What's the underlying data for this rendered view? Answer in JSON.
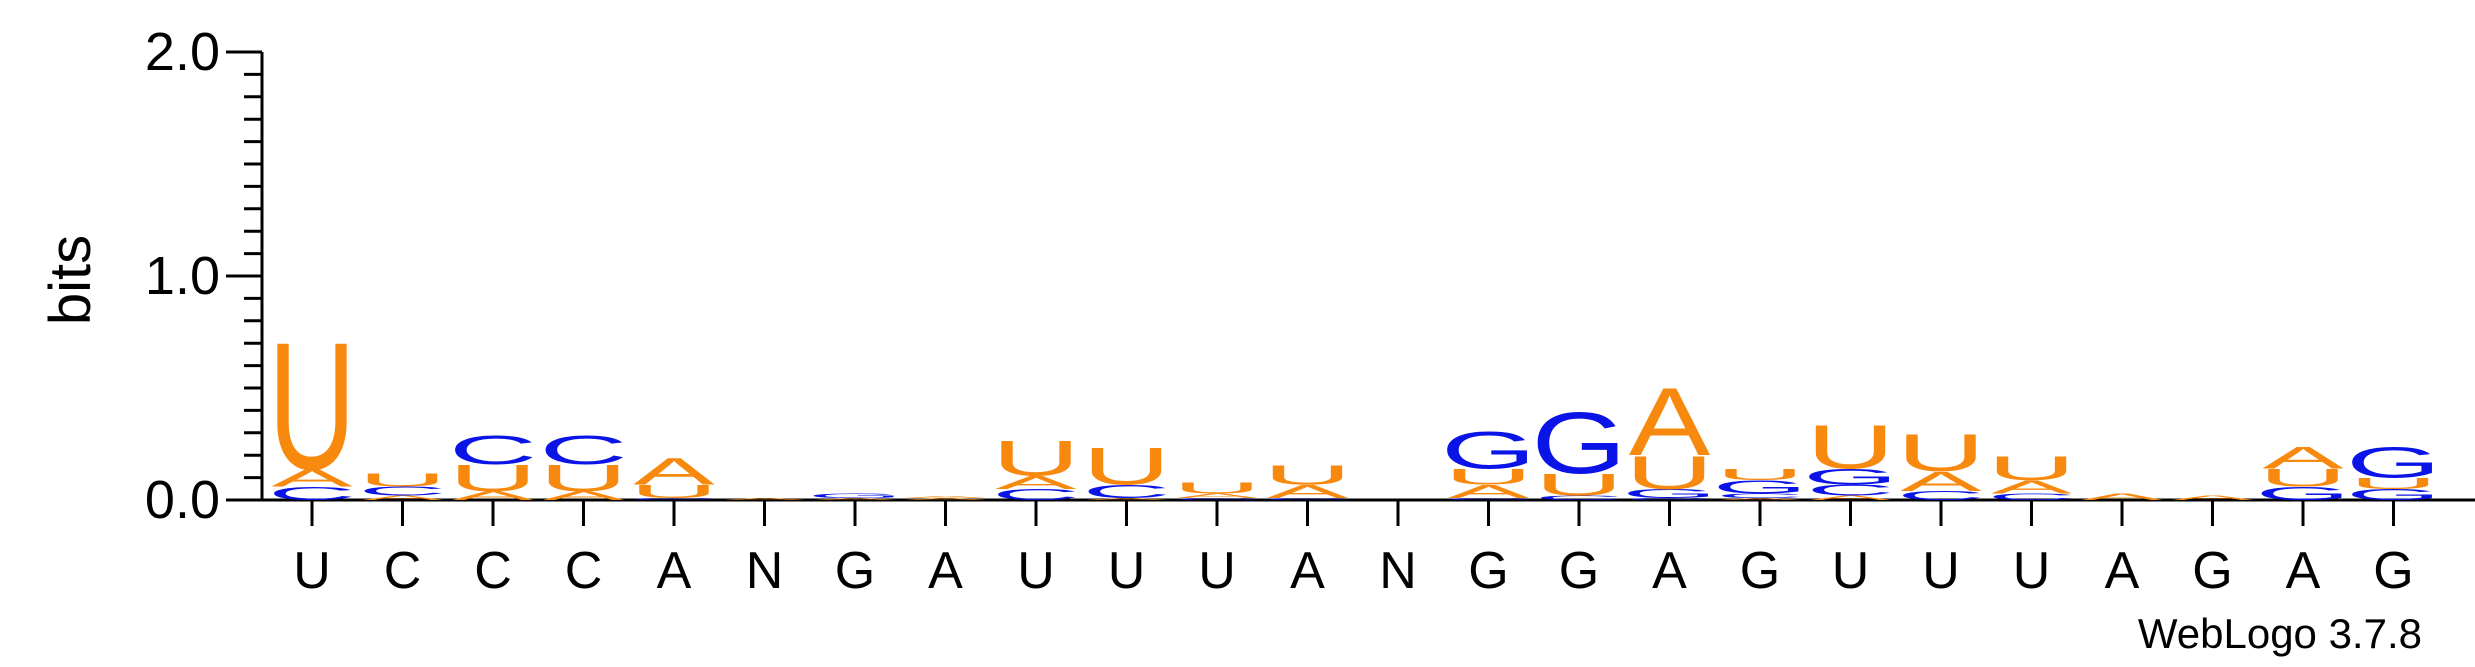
{
  "chart_data": {
    "type": "sequence-logo",
    "ylabel": "bits",
    "ylim": [
      0,
      2.0
    ],
    "yticks": [
      "0.0",
      "1.0",
      "2.0"
    ],
    "colors": {
      "A": "#f7890f",
      "U": "#f7890f",
      "C": "#0a14e6",
      "G": "#0a14e6",
      "N": "#0a14e6"
    },
    "positions": [
      "U",
      "C",
      "C",
      "C",
      "A",
      "N",
      "G",
      "A",
      "U",
      "U",
      "U",
      "A",
      "N",
      "G",
      "G",
      "A",
      "G",
      "U",
      "U",
      "U",
      "A",
      "G",
      "A",
      "G"
    ],
    "stacks": [
      [
        {
          "l": "C",
          "h": 0.06
        },
        {
          "l": "A",
          "h": 0.08
        },
        {
          "l": "U",
          "h": 0.58
        }
      ],
      [
        {
          "l": "A",
          "h": 0.02
        },
        {
          "l": "C",
          "h": 0.04
        },
        {
          "l": "U",
          "h": 0.06
        }
      ],
      [
        {
          "l": "A",
          "h": 0.04
        },
        {
          "l": "U",
          "h": 0.12
        },
        {
          "l": "C",
          "h": 0.13
        }
      ],
      [
        {
          "l": "A",
          "h": 0.04
        },
        {
          "l": "U",
          "h": 0.12
        },
        {
          "l": "C",
          "h": 0.13
        }
      ],
      [
        {
          "l": "C",
          "h": 0.01
        },
        {
          "l": "U",
          "h": 0.06
        },
        {
          "l": "A",
          "h": 0.12
        }
      ],
      [
        {
          "l": "A",
          "h": 0.01
        }
      ],
      [
        {
          "l": "A",
          "h": 0.01
        },
        {
          "l": "G",
          "h": 0.02
        }
      ],
      [
        {
          "l": "A",
          "h": 0.01
        },
        {
          "l": "A",
          "h": 0.01
        }
      ],
      [
        {
          "l": "C",
          "h": 0.05
        },
        {
          "l": "A",
          "h": 0.06
        },
        {
          "l": "U",
          "h": 0.16
        }
      ],
      [
        {
          "l": "A",
          "h": 0.01
        },
        {
          "l": "C",
          "h": 0.06
        },
        {
          "l": "U",
          "h": 0.17
        }
      ],
      [
        {
          "l": "C",
          "h": 0.01
        },
        {
          "l": "A",
          "h": 0.02
        },
        {
          "l": "U",
          "h": 0.05
        }
      ],
      [
        {
          "l": "C",
          "h": 0.01
        },
        {
          "l": "A",
          "h": 0.06
        },
        {
          "l": "U",
          "h": 0.09
        }
      ],
      [],
      [
        {
          "l": "C",
          "h": 0.01
        },
        {
          "l": "A",
          "h": 0.06
        },
        {
          "l": "U",
          "h": 0.07
        },
        {
          "l": "G",
          "h": 0.17
        }
      ],
      [
        {
          "l": "C",
          "h": 0.02
        },
        {
          "l": "U",
          "h": 0.1
        },
        {
          "l": "G",
          "h": 0.28
        }
      ],
      [
        {
          "l": "C",
          "h": 0.01
        },
        {
          "l": "G",
          "h": 0.04
        },
        {
          "l": "U",
          "h": 0.15
        },
        {
          "l": "A",
          "h": 0.31
        }
      ],
      [
        {
          "l": "A",
          "h": 0.01
        },
        {
          "l": "C",
          "h": 0.02
        },
        {
          "l": "G",
          "h": 0.06
        },
        {
          "l": "U",
          "h": 0.05
        }
      ],
      [
        {
          "l": "A",
          "h": 0.02
        },
        {
          "l": "C",
          "h": 0.05
        },
        {
          "l": "G",
          "h": 0.07
        },
        {
          "l": "U",
          "h": 0.2
        }
      ],
      [
        {
          "l": "C",
          "h": 0.04
        },
        {
          "l": "A",
          "h": 0.09
        },
        {
          "l": "U",
          "h": 0.17
        }
      ],
      [
        {
          "l": "C",
          "h": 0.03
        },
        {
          "l": "A",
          "h": 0.06
        },
        {
          "l": "U",
          "h": 0.11
        }
      ],
      [
        {
          "l": "A",
          "h": 0.03
        }
      ],
      [
        {
          "l": "A",
          "h": 0.02
        }
      ],
      [
        {
          "l": "G",
          "h": 0.06
        },
        {
          "l": "U",
          "h": 0.08
        },
        {
          "l": "A",
          "h": 0.1
        }
      ],
      [
        {
          "l": "G",
          "h": 0.05
        },
        {
          "l": "U",
          "h": 0.05
        },
        {
          "l": "G",
          "h": 0.14
        }
      ]
    ],
    "credit": "WebLogo 3.7.8"
  }
}
